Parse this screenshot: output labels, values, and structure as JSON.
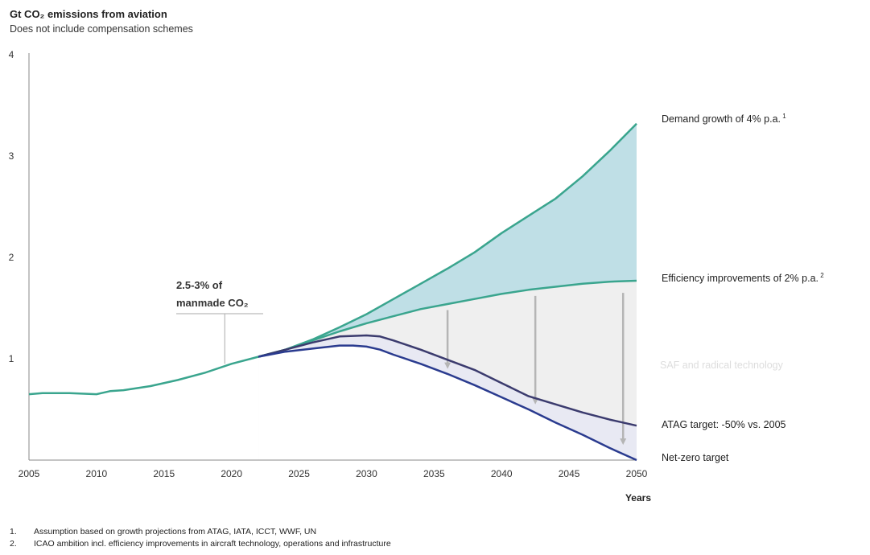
{
  "title": "Gt CO₂ emissions from aviation",
  "subtitle": "Does not include compensation schemes",
  "footnotes": [
    {
      "num": "1.",
      "text": "Assumption based on growth projections from ATAG, IATA, ICCT, WWF, UN"
    },
    {
      "num": "2.",
      "text": "ICAO ambition incl. efficiency improvements in aircraft technology, operations and infrastructure"
    }
  ],
  "chart_data": {
    "type": "area",
    "xlabel": "Years",
    "ylabel": "",
    "xlim": [
      2005,
      2050
    ],
    "ylim": [
      0,
      4
    ],
    "x_ticks": [
      "2005",
      "2010",
      "2015",
      "2020",
      "2025",
      "2030",
      "2035",
      "2040",
      "2045",
      "2050"
    ],
    "y_ticks": [
      "1",
      "2",
      "3",
      "4"
    ],
    "grid": false,
    "annotation": {
      "line1": "2.5-3% of",
      "line2": "manmade CO₂",
      "x": 2019.5,
      "y": 0.95
    },
    "area_labels": [
      "SAF and radical technology"
    ],
    "colors": {
      "demand_fill": "#bfdfe6",
      "saf_fill": "#efefef",
      "netzero_fill": "#e8e9f3",
      "green_line": "#3aa58e",
      "atag_line": "#3b3b6e",
      "netzero_line": "#2a3b8f",
      "arrow": "#b5b5b5",
      "axis": "#888888"
    },
    "series": [
      {
        "name": "Demand growth of 4% p.a.",
        "sup": "1",
        "x": [
          2005,
          2006,
          2008,
          2010,
          2011,
          2012,
          2014,
          2016,
          2018,
          2020,
          2022,
          2024,
          2026,
          2028,
          2030,
          2032,
          2034,
          2036,
          2038,
          2040,
          2042,
          2044,
          2046,
          2048,
          2050
        ],
        "values": [
          0.65,
          0.66,
          0.66,
          0.65,
          0.68,
          0.69,
          0.73,
          0.79,
          0.86,
          0.95,
          1.02,
          1.09,
          1.19,
          1.31,
          1.44,
          1.59,
          1.74,
          1.89,
          2.05,
          2.24,
          2.41,
          2.58,
          2.8,
          3.05,
          3.32
        ]
      },
      {
        "name": "Efficiency improvements of 2% p.a.",
        "sup": "2",
        "x": [
          2022,
          2024,
          2026,
          2028,
          2030,
          2032,
          2034,
          2036,
          2038,
          2040,
          2042,
          2044,
          2046,
          2048,
          2050
        ],
        "values": [
          1.02,
          1.09,
          1.18,
          1.27,
          1.35,
          1.42,
          1.49,
          1.54,
          1.59,
          1.64,
          1.68,
          1.71,
          1.74,
          1.76,
          1.77
        ]
      },
      {
        "name": "ATAG target: -50% vs. 2005",
        "sup": "",
        "x": [
          2022,
          2024,
          2026,
          2028,
          2030,
          2031,
          2032,
          2034,
          2036,
          2038,
          2040,
          2042,
          2044,
          2046,
          2048,
          2050
        ],
        "values": [
          1.02,
          1.09,
          1.16,
          1.22,
          1.23,
          1.22,
          1.18,
          1.09,
          0.99,
          0.89,
          0.76,
          0.63,
          0.55,
          0.47,
          0.4,
          0.34
        ]
      },
      {
        "name": "Net-zero target",
        "sup": "",
        "x": [
          2022,
          2024,
          2026,
          2028,
          2029,
          2030,
          2031,
          2032,
          2034,
          2036,
          2038,
          2040,
          2042,
          2044,
          2046,
          2048,
          2050
        ],
        "values": [
          1.02,
          1.07,
          1.1,
          1.13,
          1.13,
          1.12,
          1.09,
          1.04,
          0.95,
          0.85,
          0.74,
          0.62,
          0.5,
          0.37,
          0.25,
          0.12,
          0.0
        ]
      }
    ],
    "arrows": [
      {
        "x": 2036.0,
        "from": 1.48,
        "to": 0.9
      },
      {
        "x": 2042.5,
        "from": 1.62,
        "to": 0.55
      },
      {
        "x": 2049.0,
        "from": 1.65,
        "to": 0.15
      }
    ]
  }
}
